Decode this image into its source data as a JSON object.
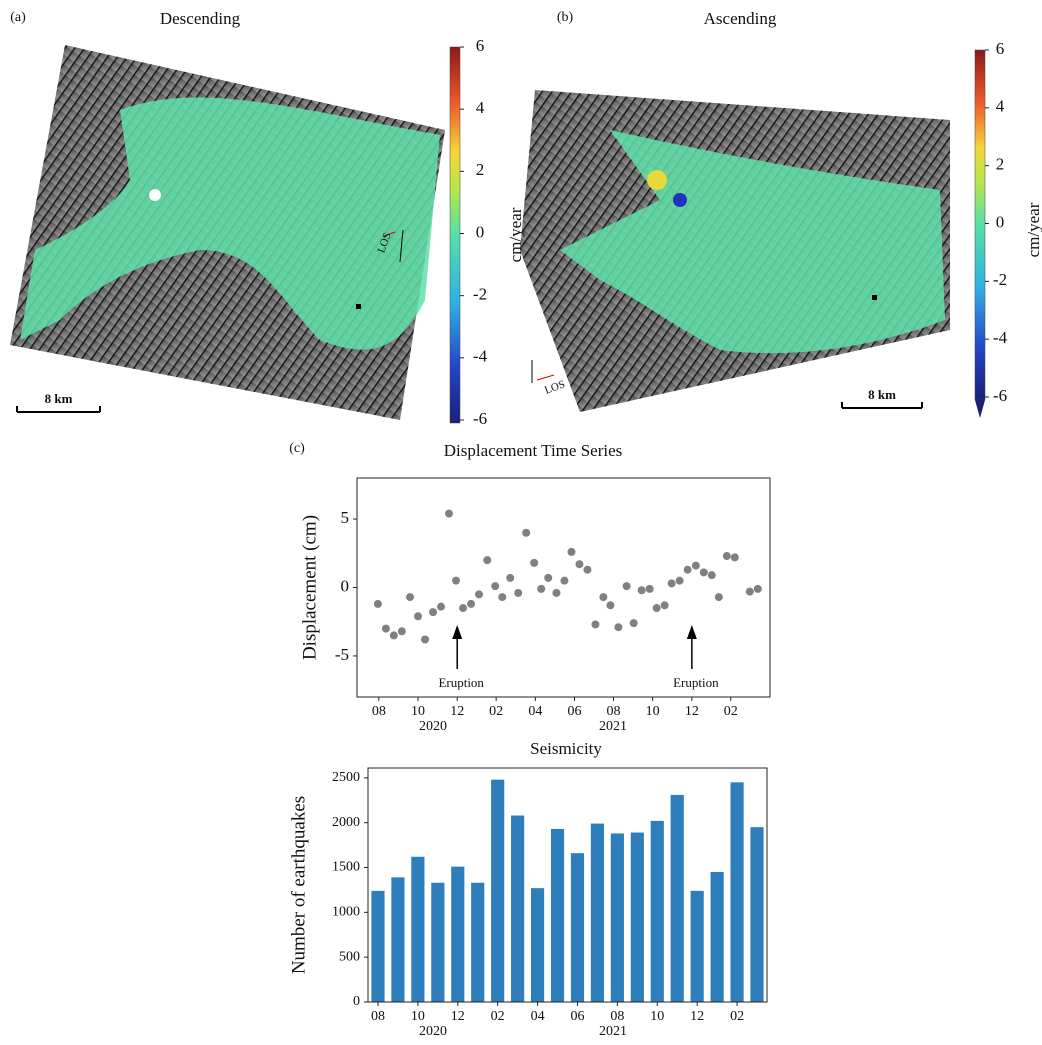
{
  "maps": [
    {
      "label": "(a)",
      "title": "Descending",
      "scale_bar": "8 km",
      "los": "LOS",
      "colorbar": {
        "label": "cm/year",
        "lim": [
          -6,
          6
        ],
        "ticks": [
          6,
          4,
          2,
          0,
          -2,
          -4,
          -6
        ]
      }
    },
    {
      "label": "(b)",
      "title": "Ascending",
      "scale_bar": "8 km",
      "los": "LOS",
      "colorbar": {
        "label": "cm/year",
        "lim": [
          -6,
          6
        ],
        "ticks": [
          6,
          4,
          2,
          0,
          -2,
          -4,
          -6
        ]
      }
    }
  ],
  "panel_label": "(c)",
  "chart_data": [
    {
      "type": "scatter",
      "title": "Displacement Time Series",
      "ylabel": "Displacement (cm)",
      "color": "#808080",
      "x": [
        2020.579,
        2020.613,
        2020.647,
        2020.681,
        2020.716,
        2020.75,
        2020.78,
        2020.814,
        2020.848,
        2020.882,
        2020.912,
        2020.942,
        2020.976,
        2021.01,
        2021.045,
        2021.079,
        2021.109,
        2021.143,
        2021.177,
        2021.211,
        2021.245,
        2021.275,
        2021.305,
        2021.34,
        2021.374,
        2021.404,
        2021.438,
        2021.472,
        2021.506,
        2021.54,
        2021.57,
        2021.604,
        2021.639,
        2021.669,
        2021.703,
        2021.737,
        2021.767,
        2021.801,
        2021.831,
        2021.865,
        2021.899,
        2021.934,
        2021.968,
        2022.002,
        2022.032,
        2022.066,
        2022.1,
        2022.164,
        2022.198
      ],
      "values": [
        -1.2,
        -3.0,
        -3.5,
        -3.2,
        -0.7,
        -2.1,
        -3.8,
        -1.8,
        -1.4,
        5.4,
        0.5,
        -1.5,
        -1.2,
        -0.5,
        2.0,
        0.1,
        -0.7,
        0.7,
        -0.4,
        4.0,
        1.8,
        -0.1,
        0.7,
        -0.4,
        0.5,
        2.6,
        1.7,
        1.3,
        -2.7,
        -0.7,
        -1.3,
        -2.9,
        0.1,
        -2.6,
        -0.2,
        -0.1,
        -1.5,
        -1.3,
        0.3,
        0.5,
        1.3,
        1.6,
        1.1,
        0.9,
        -0.7,
        2.3,
        2.2,
        -0.3,
        -0.1
      ],
      "xlim": [
        2020.49,
        2022.25
      ],
      "ylim": [
        -8,
        8
      ],
      "yticks": [
        5,
        0,
        -5
      ],
      "xticks": [
        {
          "value": 2020.583,
          "label": "08"
        },
        {
          "value": 2020.75,
          "label": "10"
        },
        {
          "value": 2020.917,
          "label": "12"
        },
        {
          "value": 2021.083,
          "label": "02"
        },
        {
          "value": 2021.25,
          "label": "04"
        },
        {
          "value": 2021.417,
          "label": "06"
        },
        {
          "value": 2021.583,
          "label": "08"
        },
        {
          "value": 2021.75,
          "label": "10"
        },
        {
          "value": 2021.917,
          "label": "12"
        },
        {
          "value": 2022.083,
          "label": "02"
        }
      ],
      "year_labels": [
        "2020",
        "2021"
      ],
      "annotations": [
        {
          "text": "Eruption",
          "x": 2020.917
        },
        {
          "text": "Eruption",
          "x": 2021.917
        }
      ]
    },
    {
      "type": "bar",
      "title": "Seismicity",
      "ylabel": "Number of earthquakes",
      "color": "#2e7ebc",
      "categories": [
        "08",
        null,
        "10",
        null,
        "12",
        null,
        "02",
        null,
        "04",
        null,
        "06",
        null,
        "08",
        null,
        "10",
        null,
        "12",
        null,
        "02",
        null
      ],
      "values": [
        1240,
        1390,
        1620,
        1330,
        1510,
        1330,
        2480,
        2080,
        1270,
        1930,
        1660,
        1990,
        1880,
        1890,
        2020,
        2310,
        1240,
        1450,
        2450,
        1950
      ],
      "ylim": [
        0,
        2610
      ],
      "yticks": [
        0,
        500,
        1000,
        1500,
        2000,
        2500
      ],
      "year_labels": [
        "2020",
        "2021"
      ]
    }
  ]
}
